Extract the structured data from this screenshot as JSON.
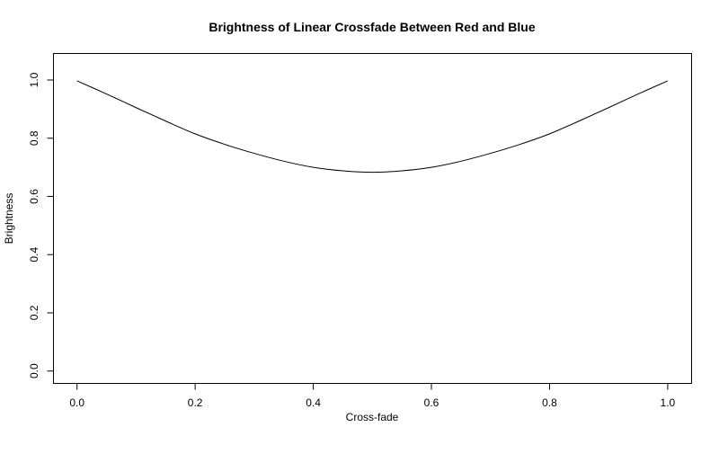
{
  "chart_data": {
    "type": "line",
    "title": "Brightness of Linear Crossfade Between Red and Blue",
    "xlabel": "Cross-fade",
    "ylabel": "Brightness",
    "xlim": [
      0,
      1
    ],
    "ylim": [
      0,
      1.05
    ],
    "xticks": [
      "0.0",
      "0.2",
      "0.4",
      "0.6",
      "0.8",
      "1.0"
    ],
    "yticks": [
      "0.0",
      "0.2",
      "0.4",
      "0.6",
      "0.8",
      "1.0"
    ],
    "grid": false,
    "series": [
      {
        "name": "brightness",
        "color": "#000000",
        "x": [
          0,
          0.05,
          0.1,
          0.15,
          0.2,
          0.25,
          0.3,
          0.35,
          0.4,
          0.45,
          0.5,
          0.55,
          0.6,
          0.65,
          0.7,
          0.75,
          0.8,
          0.85,
          0.9,
          0.95,
          1
        ],
        "y": [
          0.997,
          0.952,
          0.905,
          0.859,
          0.815,
          0.779,
          0.748,
          0.721,
          0.7,
          0.688,
          0.683,
          0.688,
          0.7,
          0.721,
          0.748,
          0.779,
          0.815,
          0.859,
          0.905,
          0.952,
          0.997
        ]
      }
    ]
  }
}
